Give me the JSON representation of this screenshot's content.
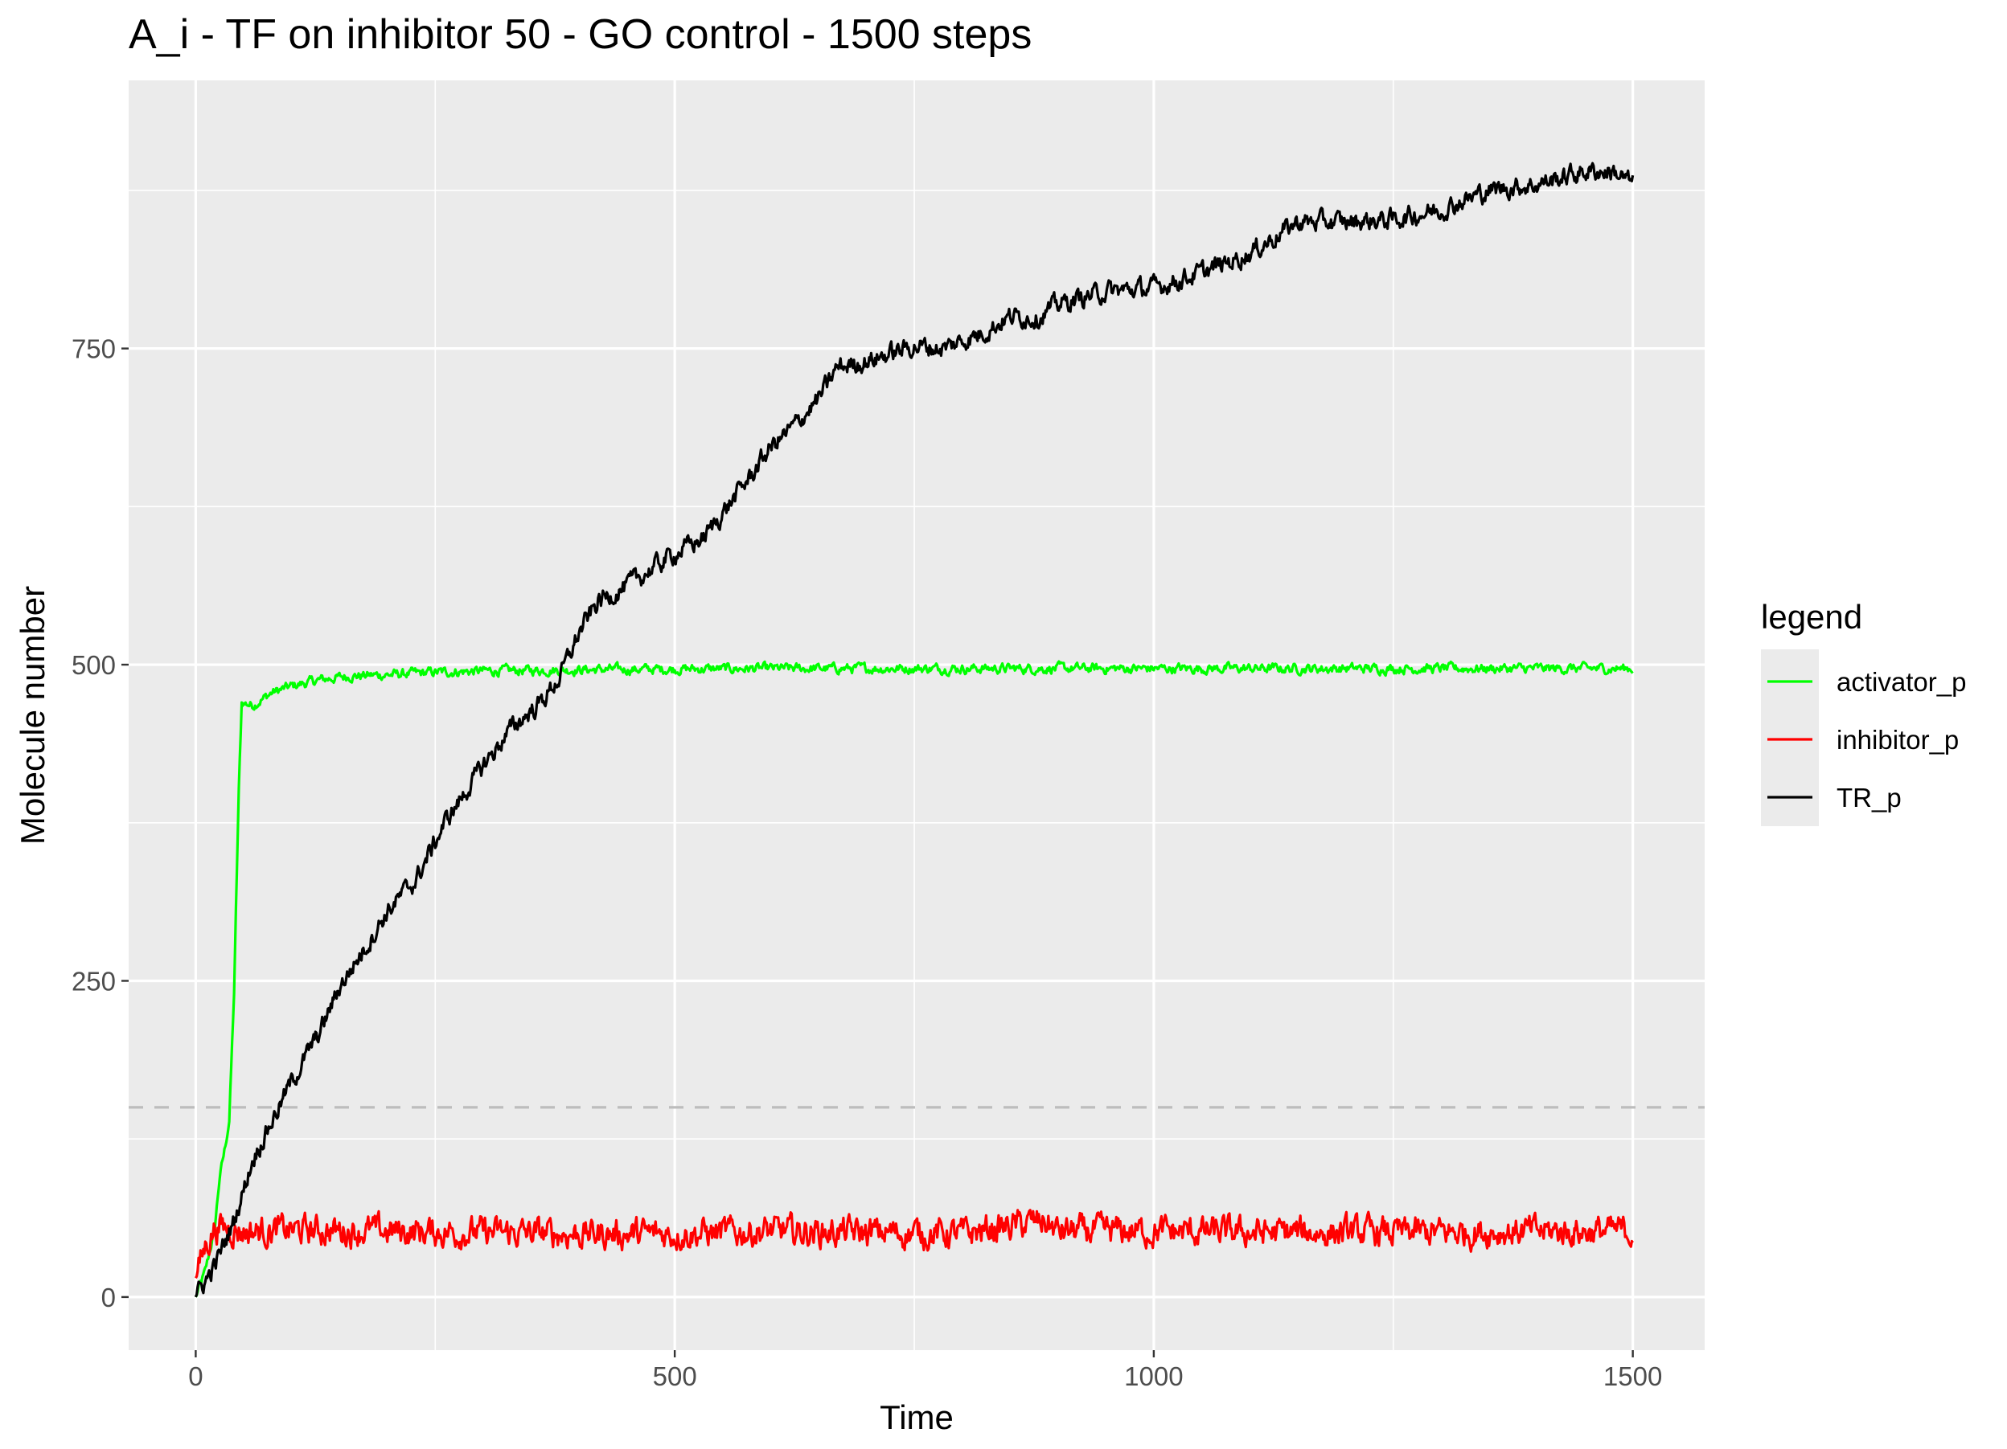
{
  "chart_data": {
    "type": "line",
    "title": "A_i - TF on inhibitor 50 - GO control - 1500 steps",
    "xlabel": "Time",
    "ylabel": "Molecule number",
    "xlim": [
      -70,
      1575
    ],
    "ylim": [
      -42,
      962
    ],
    "x_ticks": [
      0,
      500,
      1000,
      1500
    ],
    "y_ticks": [
      0,
      250,
      500,
      750
    ],
    "x_tick_labels": [
      "0",
      "500",
      "1000",
      "1500"
    ],
    "y_tick_labels": [
      "0",
      "250",
      "500",
      "750"
    ],
    "grid": true,
    "reference_line": {
      "y": 150,
      "style": "dashed",
      "color": "#bdbdbd"
    },
    "legend": {
      "title": "legend",
      "position": "right"
    },
    "series": [
      {
        "name": "activator_p",
        "color": "#00ff00",
        "noise": 3,
        "points": [
          [
            0,
            0
          ],
          [
            10,
            20
          ],
          [
            20,
            55
          ],
          [
            25,
            95
          ],
          [
            30,
            115
          ],
          [
            35,
            140
          ],
          [
            40,
            240
          ],
          [
            45,
            400
          ],
          [
            48,
            470
          ],
          [
            60,
            468
          ],
          [
            80,
            478
          ],
          [
            100,
            483
          ],
          [
            130,
            488
          ],
          [
            160,
            491
          ],
          [
            200,
            492
          ],
          [
            250,
            494
          ],
          [
            300,
            495
          ],
          [
            400,
            496
          ],
          [
            600,
            497
          ],
          [
            800,
            497
          ],
          [
            1000,
            497
          ],
          [
            1200,
            497
          ],
          [
            1500,
            497
          ]
        ]
      },
      {
        "name": "inhibitor_p",
        "color": "#ff0000",
        "noise": 9,
        "points": [
          [
            0,
            15
          ],
          [
            10,
            40
          ],
          [
            20,
            55
          ],
          [
            30,
            55
          ],
          [
            50,
            52
          ],
          [
            100,
            53
          ],
          [
            200,
            52
          ],
          [
            300,
            51
          ],
          [
            400,
            50
          ],
          [
            500,
            50
          ],
          [
            600,
            52
          ],
          [
            700,
            51
          ],
          [
            800,
            50
          ],
          [
            885,
            60
          ],
          [
            900,
            52
          ],
          [
            1000,
            52
          ],
          [
            1100,
            51
          ],
          [
            1200,
            51
          ],
          [
            1300,
            51
          ],
          [
            1400,
            52
          ],
          [
            1500,
            52
          ]
        ]
      },
      {
        "name": "TR_p",
        "color": "#000000",
        "noise": 6,
        "points": [
          [
            0,
            0
          ],
          [
            20,
            25
          ],
          [
            40,
            60
          ],
          [
            60,
            110
          ],
          [
            80,
            140
          ],
          [
            100,
            170
          ],
          [
            130,
            210
          ],
          [
            150,
            245
          ],
          [
            180,
            280
          ],
          [
            200,
            305
          ],
          [
            230,
            330
          ],
          [
            260,
            375
          ],
          [
            300,
            420
          ],
          [
            330,
            450
          ],
          [
            360,
            470
          ],
          [
            380,
            490
          ],
          [
            400,
            525
          ],
          [
            420,
            550
          ],
          [
            450,
            562
          ],
          [
            480,
            578
          ],
          [
            500,
            588
          ],
          [
            530,
            600
          ],
          [
            560,
            630
          ],
          [
            580,
            650
          ],
          [
            600,
            672
          ],
          [
            620,
            685
          ],
          [
            650,
            710
          ],
          [
            670,
            735
          ],
          [
            700,
            740
          ],
          [
            750,
            752
          ],
          [
            780,
            750
          ],
          [
            820,
            762
          ],
          [
            850,
            775
          ],
          [
            880,
            775
          ],
          [
            900,
            785
          ],
          [
            950,
            795
          ],
          [
            1000,
            798
          ],
          [
            1050,
            810
          ],
          [
            1100,
            825
          ],
          [
            1120,
            835
          ],
          [
            1150,
            850
          ],
          [
            1200,
            850
          ],
          [
            1250,
            852
          ],
          [
            1300,
            860
          ],
          [
            1350,
            875
          ],
          [
            1400,
            880
          ],
          [
            1450,
            890
          ],
          [
            1480,
            890
          ],
          [
            1500,
            880
          ]
        ]
      }
    ]
  }
}
